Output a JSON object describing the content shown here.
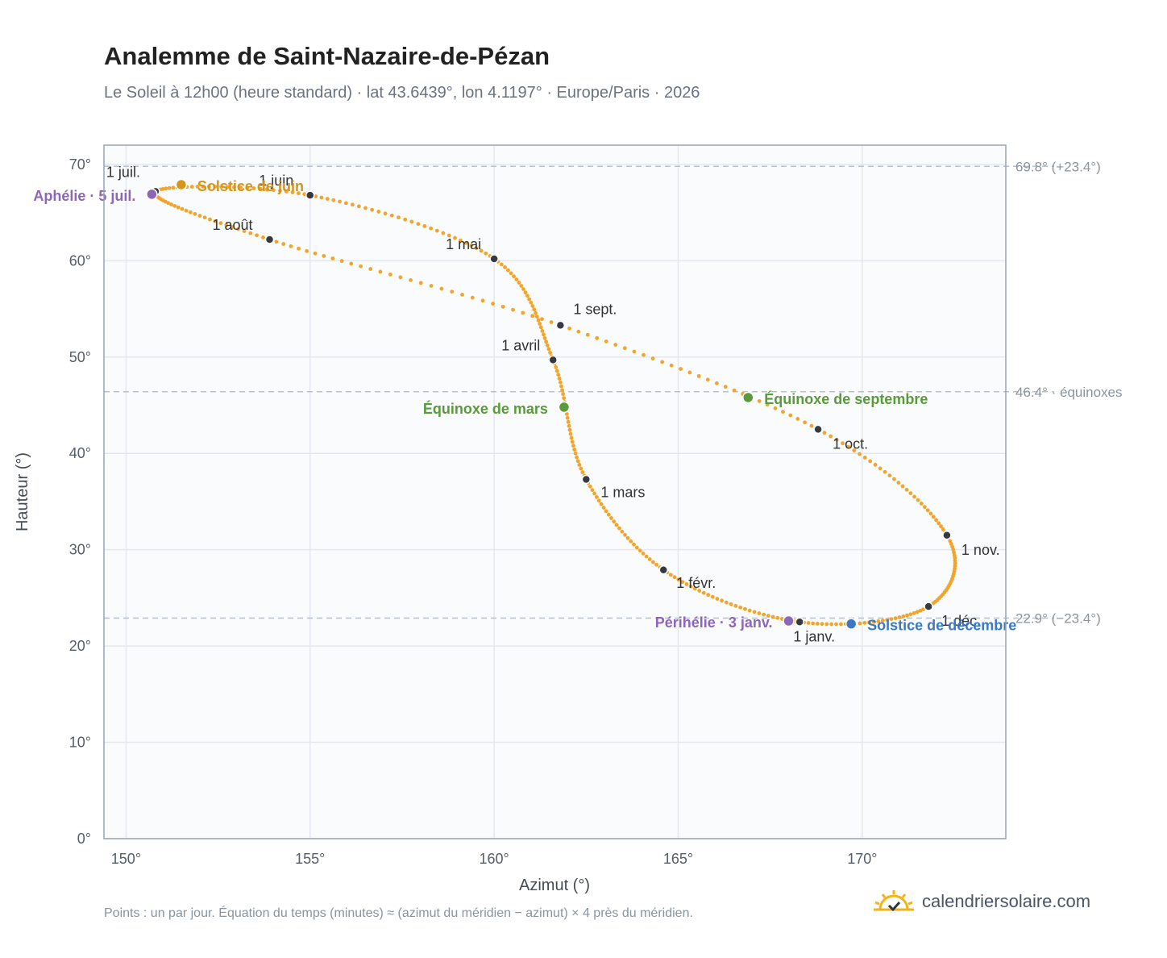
{
  "title": "Analemme de Saint-Nazaire-de-Pézan",
  "subtitle": "Le Soleil à 12h00 (heure standard) · lat 43.6439°, lon 4.1197° · Europe/Paris · 2026",
  "footnote": "Points : un par jour. Équation du temps (minutes) ≈ (azimut du méridien − azimut) × 4 près du méridien.",
  "brand": {
    "name": "calendriersolaire.com",
    "logo_icon": "sun-icon",
    "color": "#f2b318"
  },
  "chart_data": {
    "type": "scatter",
    "xlabel": "Azimut (°)",
    "ylabel": "Hauteur (°)",
    "xlim": [
      149.4,
      173.9
    ],
    "ylim": [
      0,
      72
    ],
    "xticks": [
      150,
      155,
      160,
      165,
      170
    ],
    "xtick_labels": [
      "150°",
      "155°",
      "160°",
      "165°",
      "170°"
    ],
    "yticks": [
      0,
      10,
      20,
      30,
      40,
      50,
      60,
      70
    ],
    "ytick_labels": [
      "0°",
      "10°",
      "20°",
      "30°",
      "40°",
      "50°",
      "60°",
      "70°"
    ],
    "grid": true,
    "curve_color": "#f2a52a",
    "reference_lines": [
      {
        "y": 69.8,
        "label": "69.8° (+23.4°)"
      },
      {
        "y": 46.4,
        "label": "46.4° · équinoxes"
      },
      {
        "y": 22.9,
        "label": "22.9° (−23.4°)"
      }
    ],
    "anchors": [
      {
        "date": "1 janv.",
        "doy": 1,
        "azimuth": 168.3,
        "altitude": 22.5
      },
      {
        "date": "1 févr.",
        "doy": 32,
        "azimuth": 164.6,
        "altitude": 27.9
      },
      {
        "date": "1 mars",
        "doy": 60,
        "azimuth": 162.5,
        "altitude": 37.3
      },
      {
        "date": "1 avril",
        "doy": 91,
        "azimuth": 161.6,
        "altitude": 49.7
      },
      {
        "date": "1 mai",
        "doy": 121,
        "azimuth": 160.0,
        "altitude": 60.2
      },
      {
        "date": "1 juin",
        "doy": 152,
        "azimuth": 155.0,
        "altitude": 66.8
      },
      {
        "date": "1 juil.",
        "doy": 182,
        "azimuth": 150.8,
        "altitude": 67.2
      },
      {
        "date": "1 août",
        "doy": 213,
        "azimuth": 153.9,
        "altitude": 62.2
      },
      {
        "date": "1 sept.",
        "doy": 244,
        "azimuth": 161.8,
        "altitude": 53.3
      },
      {
        "date": "1 oct.",
        "doy": 274,
        "azimuth": 168.8,
        "altitude": 42.5
      },
      {
        "date": "1 nov.",
        "doy": 305,
        "azimuth": 172.3,
        "altitude": 31.5
      },
      {
        "date": "1 déc.",
        "doy": 335,
        "azimuth": 171.8,
        "altitude": 24.1
      }
    ],
    "events": [
      {
        "name": "Périhélie · 3 janv.",
        "doy": 3,
        "azimuth": 168.0,
        "altitude": 22.6,
        "color": "#8e66b8"
      },
      {
        "name": "Équinoxe de mars",
        "doy": 79,
        "azimuth": 161.9,
        "altitude": 44.8,
        "color": "#5a9a3a"
      },
      {
        "name": "Solstice de juin",
        "doy": 172,
        "azimuth": 151.5,
        "altitude": 67.9,
        "color": "#d4951a"
      },
      {
        "name": "Aphélie · 5 juil.",
        "doy": 186,
        "azimuth": 150.7,
        "altitude": 66.9,
        "color": "#8e66b8"
      },
      {
        "name": "Équinoxe de septembre",
        "doy": 266,
        "azimuth": 166.9,
        "altitude": 45.8,
        "color": "#5a9a3a"
      },
      {
        "name": "Solstice de décembre",
        "doy": 355,
        "azimuth": 169.7,
        "altitude": 22.3,
        "color": "#3d78c0"
      }
    ]
  }
}
